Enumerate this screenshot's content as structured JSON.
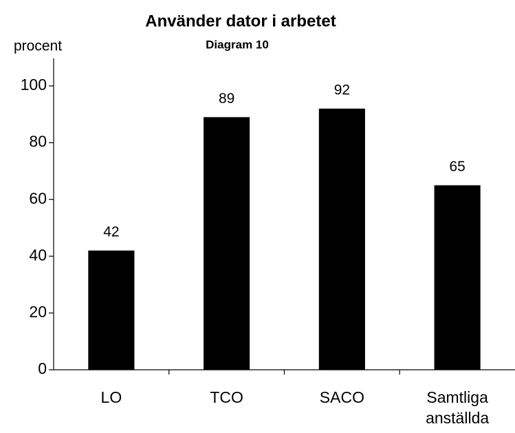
{
  "chart_data": {
    "type": "bar",
    "title": "Använder dator i arbetet",
    "subtitle": "Diagram 10",
    "y_label": "procent",
    "categories": [
      "LO",
      "TCO",
      "SACO",
      "Samtliga anställda"
    ],
    "values": [
      42,
      89,
      92,
      65
    ],
    "color": "#000000",
    "ylim": [
      0,
      100
    ],
    "yticks": [
      0,
      20,
      40,
      60,
      80,
      100
    ],
    "grid": false,
    "data_labels": true
  }
}
